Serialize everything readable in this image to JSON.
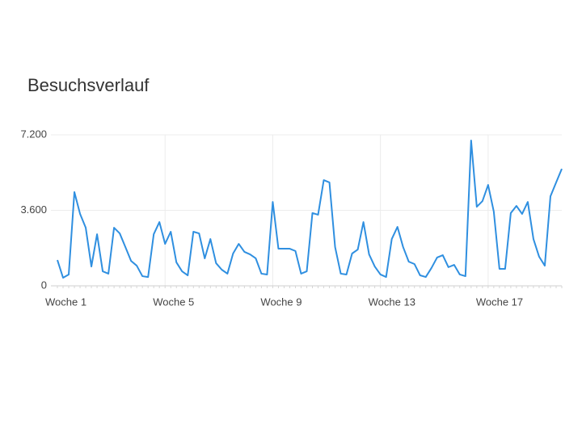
{
  "chart_data": {
    "type": "line",
    "title": "Besuchsverlauf",
    "categories": [
      "Woche 1",
      null,
      null,
      null,
      null,
      null,
      null,
      null,
      null,
      null,
      null,
      null,
      null,
      null,
      null,
      null,
      null,
      null,
      null,
      "Woche 5",
      null,
      null,
      null,
      null,
      null,
      null,
      null,
      null,
      null,
      null,
      null,
      null,
      null,
      null,
      null,
      null,
      null,
      null,
      "Woche 9",
      null,
      null,
      null,
      null,
      null,
      null,
      null,
      null,
      null,
      null,
      null,
      null,
      null,
      null,
      null,
      null,
      null,
      null,
      "Woche 13",
      null,
      null,
      null,
      null,
      null,
      null,
      null,
      null,
      null,
      null,
      null,
      null,
      null,
      null,
      null,
      null,
      null,
      null,
      "Woche 17",
      null,
      null,
      null,
      null,
      null,
      null,
      null,
      null,
      null,
      null,
      null,
      null,
      null
    ],
    "series": [
      {
        "color": "#2f8fe0",
        "values": [
          1230,
          385,
          540,
          4470,
          3430,
          2770,
          920,
          2460,
          690,
          580,
          2770,
          2500,
          1850,
          1190,
          960,
          460,
          420,
          2460,
          3040,
          2000,
          2580,
          1120,
          690,
          500,
          2580,
          2500,
          1310,
          2230,
          1080,
          770,
          580,
          1540,
          2000,
          1620,
          1500,
          1310,
          580,
          540,
          4000,
          1770,
          1770,
          1770,
          1660,
          580,
          690,
          3470,
          3390,
          5040,
          4930,
          1850,
          580,
          540,
          1540,
          1730,
          3040,
          1500,
          920,
          540,
          420,
          2230,
          2810,
          1850,
          1150,
          1040,
          500,
          420,
          850,
          1350,
          1460,
          890,
          1000,
          540,
          460,
          6930,
          3770,
          4040,
          4810,
          3540,
          810,
          810,
          3470,
          3810,
          3430,
          4000,
          2230,
          1390,
          960,
          4270,
          4930,
          5580
        ]
      }
    ],
    "ylim": [
      0,
      7200
    ],
    "yticks": [
      0,
      {
        "value": 3600,
        "label": "3.600"
      },
      {
        "value": 7200,
        "label": "7.200"
      }
    ],
    "grid": true
  }
}
